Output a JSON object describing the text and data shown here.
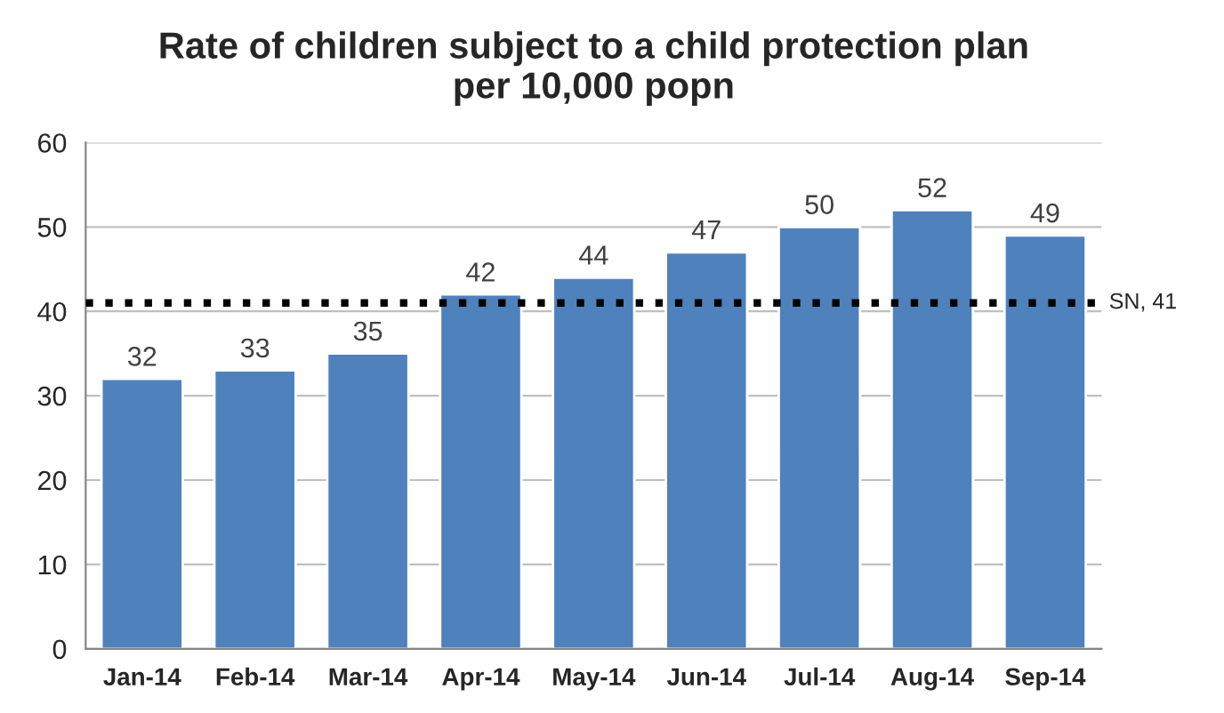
{
  "chart_data": {
    "type": "bar",
    "title": "Rate of children subject to a child protection plan\nper 10,000 popn",
    "categories": [
      "Jan-14",
      "Feb-14",
      "Mar-14",
      "Apr-14",
      "May-14",
      "Jun-14",
      "Jul-14",
      "Aug-14",
      "Sep-14"
    ],
    "values": [
      32,
      33,
      35,
      42,
      44,
      47,
      50,
      52,
      49
    ],
    "color": "#4f81bd",
    "data_labels": true,
    "ylim": [
      0,
      60
    ],
    "yticks": [
      0,
      10,
      20,
      30,
      40,
      50,
      60
    ],
    "grid": "y",
    "ref_lines": [
      {
        "axis": "y",
        "value": 41,
        "label": "SN, 41",
        "color": "#000000",
        "line_style": "dotted"
      }
    ]
  }
}
